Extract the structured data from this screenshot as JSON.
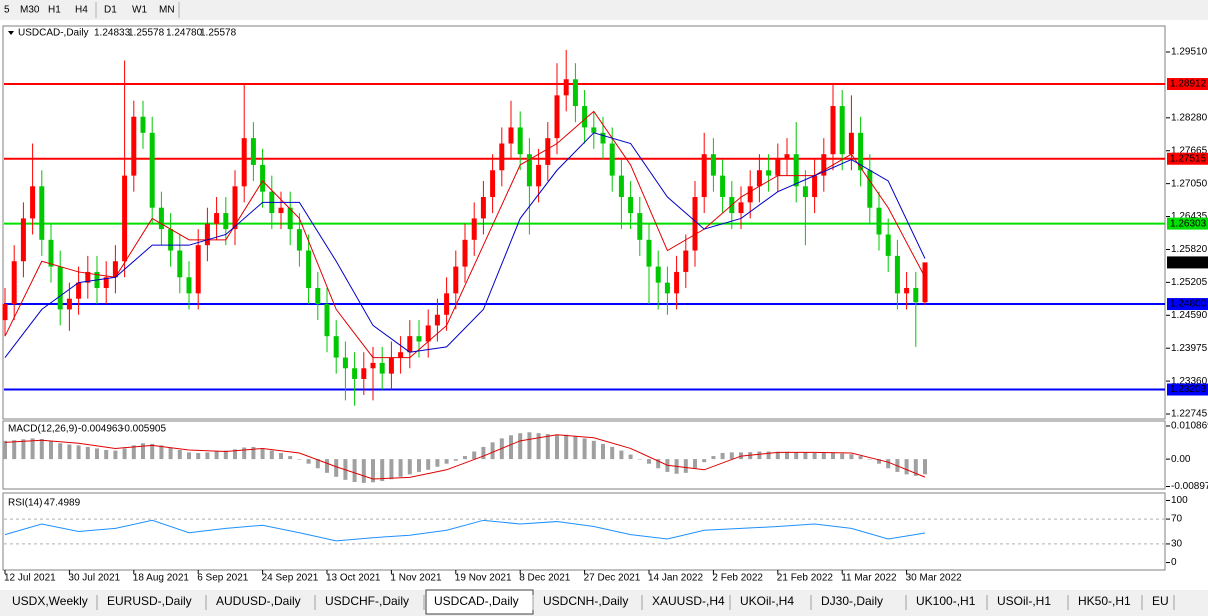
{
  "toolbar": {
    "timeframes": [
      "5",
      "M30",
      "H1",
      "H4",
      "D1",
      "W1",
      "MN"
    ]
  },
  "chart_data": [
    {
      "type": "candlestick",
      "symbol": "USDCAD-,Daily",
      "quote_labels": [
        "1.24833",
        "1.25578",
        "1.24780",
        "1.25578"
      ],
      "up_color": "#ff0000",
      "down_color": "#00c800",
      "categories": [
        "12 Jul 2021",
        null,
        null,
        null,
        null,
        null,
        null,
        "30 Jul 2021",
        null,
        null,
        null,
        null,
        null,
        null,
        "18 Aug 2021",
        null,
        null,
        null,
        null,
        null,
        null,
        "6 Sep 2021",
        null,
        null,
        null,
        null,
        null,
        null,
        "24 Sep 2021",
        null,
        null,
        null,
        null,
        null,
        null,
        "13 Oct 2021",
        null,
        null,
        null,
        null,
        null,
        null,
        "1 Nov 2021",
        null,
        null,
        null,
        null,
        null,
        null,
        "19 Nov 2021",
        null,
        null,
        null,
        null,
        null,
        null,
        "8 Dec 2021",
        null,
        null,
        null,
        null,
        null,
        null,
        "27 Dec 2021",
        null,
        null,
        null,
        null,
        null,
        null,
        "14 Jan 2022",
        null,
        null,
        null,
        null,
        null,
        null,
        "2 Feb 2022",
        null,
        null,
        null,
        null,
        null,
        null,
        "21 Feb 2022",
        null,
        null,
        null,
        null,
        null,
        null,
        "11 Mar 2022",
        null,
        null,
        null,
        null,
        null,
        null,
        "30 Mar 2022",
        null,
        null
      ],
      "open": [
        1.245,
        1.248,
        1.256,
        1.264,
        1.27,
        1.26,
        1.255,
        1.247,
        1.249,
        1.252,
        1.254,
        1.251,
        1.253,
        1.256,
        1.272,
        1.283,
        1.28,
        1.266,
        1.262,
        1.258,
        1.253,
        1.25,
        1.259,
        1.263,
        1.265,
        1.262,
        1.27,
        1.279,
        1.274,
        1.269,
        1.265,
        1.266,
        1.262,
        1.258,
        1.251,
        1.248,
        1.242,
        1.238,
        1.236,
        1.234,
        1.236,
        1.237,
        1.235,
        1.238,
        1.239,
        1.242,
        1.241,
        1.244,
        1.246,
        1.25,
        1.255,
        1.26,
        1.264,
        1.268,
        1.273,
        1.278,
        1.281,
        1.276,
        1.27,
        1.274,
        1.279,
        1.287,
        1.29,
        1.285,
        1.281,
        1.28,
        1.278,
        1.272,
        1.268,
        1.265,
        1.26,
        1.255,
        1.252,
        1.25,
        1.254,
        1.258,
        1.268,
        1.276,
        1.272,
        1.268,
        1.265,
        1.267,
        1.27,
        1.273,
        1.272,
        1.275,
        1.276,
        1.27,
        1.268,
        1.272,
        1.276,
        1.285,
        1.276,
        1.28,
        1.273,
        1.266,
        1.261,
        1.257,
        1.25,
        1.251,
        1.24833
      ],
      "high": [
        1.251,
        1.259,
        1.267,
        1.278,
        1.273,
        1.263,
        1.258,
        1.252,
        1.255,
        1.257,
        1.257,
        1.256,
        1.259,
        1.2935,
        1.286,
        1.286,
        1.283,
        1.269,
        1.265,
        1.261,
        1.256,
        1.262,
        1.266,
        1.268,
        1.268,
        1.273,
        1.289,
        1.282,
        1.277,
        1.272,
        1.269,
        1.269,
        1.265,
        1.261,
        1.254,
        1.251,
        1.245,
        1.241,
        1.239,
        1.239,
        1.24,
        1.24,
        1.241,
        1.242,
        1.245,
        1.245,
        1.247,
        1.249,
        1.253,
        1.258,
        1.263,
        1.267,
        1.271,
        1.276,
        1.281,
        1.286,
        1.284,
        1.279,
        1.277,
        1.282,
        1.293,
        1.2955,
        1.293,
        1.288,
        1.284,
        1.283,
        1.281,
        1.275,
        1.271,
        1.268,
        1.263,
        1.258,
        1.255,
        1.257,
        1.261,
        1.271,
        1.28,
        1.279,
        1.275,
        1.271,
        1.27,
        1.273,
        1.276,
        1.276,
        1.278,
        1.279,
        1.282,
        1.273,
        1.275,
        1.279,
        1.289,
        1.288,
        1.287,
        1.283,
        1.276,
        1.269,
        1.264,
        1.26,
        1.254,
        1.254,
        1.25578
      ],
      "low": [
        1.242,
        1.245,
        1.253,
        1.261,
        1.257,
        1.252,
        1.244,
        1.243,
        1.246,
        1.249,
        1.248,
        1.248,
        1.25,
        1.253,
        1.269,
        1.277,
        1.263,
        1.259,
        1.255,
        1.25,
        1.247,
        1.247,
        1.256,
        1.26,
        1.259,
        1.259,
        1.267,
        1.271,
        1.266,
        1.262,
        1.262,
        1.259,
        1.255,
        1.248,
        1.245,
        1.239,
        1.235,
        1.23,
        1.229,
        1.231,
        1.23,
        1.232,
        1.232,
        1.235,
        1.236,
        1.238,
        1.238,
        1.241,
        1.243,
        1.247,
        1.252,
        1.257,
        1.261,
        1.265,
        1.27,
        1.275,
        1.273,
        1.261,
        1.267,
        1.271,
        1.276,
        1.284,
        1.282,
        1.278,
        1.277,
        1.275,
        1.269,
        1.262,
        1.262,
        1.257,
        1.248,
        1.247,
        1.246,
        1.247,
        1.251,
        1.255,
        1.265,
        1.269,
        1.265,
        1.262,
        1.262,
        1.264,
        1.267,
        1.269,
        1.269,
        1.272,
        1.267,
        1.259,
        1.265,
        1.269,
        1.273,
        1.273,
        1.273,
        1.27,
        1.263,
        1.258,
        1.254,
        1.247,
        1.247,
        1.24,
        1.2478
      ],
      "close": [
        1.248,
        1.256,
        1.264,
        1.27,
        1.26,
        1.255,
        1.247,
        1.249,
        1.252,
        1.254,
        1.251,
        1.253,
        1.256,
        1.272,
        1.283,
        1.28,
        1.266,
        1.262,
        1.258,
        1.253,
        1.25,
        1.259,
        1.263,
        1.265,
        1.262,
        1.27,
        1.279,
        1.274,
        1.269,
        1.265,
        1.266,
        1.262,
        1.258,
        1.251,
        1.248,
        1.242,
        1.238,
        1.236,
        1.234,
        1.236,
        1.237,
        1.235,
        1.238,
        1.239,
        1.242,
        1.241,
        1.244,
        1.246,
        1.25,
        1.255,
        1.26,
        1.264,
        1.268,
        1.273,
        1.278,
        1.281,
        1.276,
        1.27,
        1.274,
        1.279,
        1.287,
        1.29,
        1.285,
        1.281,
        1.28,
        1.278,
        1.272,
        1.268,
        1.265,
        1.26,
        1.255,
        1.252,
        1.25,
        1.254,
        1.258,
        1.268,
        1.276,
        1.272,
        1.268,
        1.265,
        1.267,
        1.27,
        1.273,
        1.272,
        1.275,
        1.276,
        1.27,
        1.268,
        1.272,
        1.276,
        1.285,
        1.276,
        1.28,
        1.273,
        1.266,
        1.261,
        1.257,
        1.25,
        1.251,
        1.24833,
        1.25578
      ],
      "series": [
        {
          "color": "#e00000",
          "x": [
            0,
            4,
            8,
            12,
            16,
            20,
            24,
            28,
            32,
            36,
            40,
            44,
            48,
            52,
            56,
            60,
            64,
            68,
            72,
            76,
            80,
            84,
            88,
            92,
            96,
            100
          ],
          "values": [
            1.242,
            1.256,
            1.254,
            1.253,
            1.264,
            1.26,
            1.26,
            1.271,
            1.264,
            1.247,
            1.238,
            1.238,
            1.244,
            1.259,
            1.274,
            1.278,
            1.284,
            1.274,
            1.258,
            1.262,
            1.268,
            1.272,
            1.272,
            1.276,
            1.266,
            1.253
          ]
        },
        {
          "color": "#0000c8",
          "x": [
            0,
            4,
            8,
            12,
            16,
            20,
            24,
            28,
            32,
            36,
            40,
            44,
            48,
            52,
            56,
            60,
            64,
            68,
            72,
            76,
            80,
            84,
            88,
            92,
            96,
            100
          ],
          "values": [
            1.238,
            1.247,
            1.252,
            1.253,
            1.259,
            1.259,
            1.261,
            1.267,
            1.267,
            1.256,
            1.244,
            1.239,
            1.24,
            1.247,
            1.264,
            1.273,
            1.28,
            1.278,
            1.268,
            1.262,
            1.264,
            1.269,
            1.272,
            1.275,
            1.271,
            1.2565
          ]
        }
      ],
      "hlines": [
        {
          "value": 1.28912,
          "color": "#ff0000"
        },
        {
          "value": 1.27515,
          "color": "#ff0000"
        },
        {
          "value": 1.26303,
          "color": "#00e000"
        },
        {
          "value": {
            "value": 1.248,
            "label": "1.24800"
          },
          "color": "#0000ff"
        },
        {
          "value": 1.23203,
          "color": "#0000ff"
        }
      ],
      "ylim": [
        1.22652,
        1.29977
      ],
      "yticks": [
        {
          "value": 1.2951,
          "label": "1.29510"
        },
        {
          "value": 1.2828,
          "label": "1.28280"
        },
        1.27665,
        {
          "value": 1.2705,
          "label": "1.27050"
        },
        1.26435,
        {
          "value": 1.2582,
          "label": "1.25820"
        },
        1.25205,
        {
          "value": 1.2459,
          "label": "1.24590"
        },
        1.23975,
        {
          "value": 1.2336,
          "label": "1.23360"
        },
        1.22745
      ]
    },
    {
      "type": "macd",
      "title": "MACD(12,26,9)",
      "color": "#a0a0a0",
      "values": [
        0.006,
        0.0062,
        0.0065,
        0.0068,
        0.0066,
        0.006,
        0.0052,
        0.0048,
        0.0045,
        0.004,
        0.0035,
        0.003,
        0.0028,
        0.0035,
        0.0045,
        0.0052,
        0.005,
        0.0045,
        0.0038,
        0.003,
        0.0022,
        0.002,
        0.0022,
        0.0025,
        0.0028,
        0.0032,
        0.0038,
        0.004,
        0.0035,
        0.0028,
        0.002,
        0.001,
        0.0,
        -0.0015,
        -0.003,
        -0.0045,
        -0.0058,
        -0.0068,
        -0.0075,
        -0.0078,
        -0.0076,
        -0.0072,
        -0.0066,
        -0.0058,
        -0.005,
        -0.0042,
        -0.0035,
        -0.0025,
        -0.0015,
        -0.0005,
        0.001,
        0.0025,
        0.004,
        0.0055,
        0.0068,
        0.0078,
        0.0085,
        0.0088,
        0.0085,
        0.0082,
        0.0078,
        0.008,
        0.0075,
        0.0068,
        0.006,
        0.005,
        0.004,
        0.0028,
        0.0015,
        0.0,
        -0.0015,
        -0.003,
        -0.0042,
        -0.0048,
        -0.0045,
        -0.003,
        -0.001,
        0.001,
        0.002,
        0.0022,
        0.0022,
        0.0023,
        0.0025,
        0.0025,
        0.0024,
        0.0024,
        0.0023,
        0.0022,
        0.002,
        0.002,
        0.0022,
        0.0018,
        0.0016,
        0.001,
        0.0,
        -0.0015,
        -0.003,
        -0.0042,
        -0.005,
        -0.0055,
        -0.004963
      ],
      "signal": {
        "color": "#e00000",
        "x": [
          0,
          4,
          8,
          12,
          16,
          20,
          24,
          28,
          32,
          36,
          40,
          44,
          48,
          52,
          56,
          60,
          64,
          68,
          72,
          76,
          80,
          84,
          88,
          92,
          96,
          100
        ],
        "values": [
          0.0055,
          0.0062,
          0.0052,
          0.0035,
          0.0045,
          0.003,
          0.0025,
          0.0035,
          0.002,
          -0.0025,
          -0.0065,
          -0.006,
          -0.0035,
          0.001,
          0.006,
          0.008,
          0.007,
          0.0035,
          -0.002,
          -0.0035,
          0.001,
          0.0022,
          0.0022,
          0.002,
          -0.001,
          -0.005905
        ]
      },
      "ylim": [
        -0.0098,
        0.0125
      ],
      "yticks": [
        0.010869,
        {
          "value": 0,
          "label": "0.00"
        },
        -0.008974
      ]
    },
    {
      "type": "rsi",
      "title": "RSI(14)",
      "color": "#1e90ff",
      "x": [
        0,
        4,
        8,
        12,
        16,
        20,
        24,
        28,
        32,
        36,
        40,
        44,
        48,
        52,
        56,
        60,
        64,
        68,
        72,
        76,
        80,
        84,
        88,
        92,
        96,
        100
      ],
      "values": [
        45,
        62,
        50,
        55,
        68,
        48,
        55,
        60,
        48,
        35,
        40,
        44,
        52,
        68,
        62,
        66,
        58,
        45,
        38,
        52,
        55,
        58,
        62,
        55,
        38,
        47.4989
      ],
      "ylim": [
        -12,
        112
      ],
      "yticks": [
        100,
        70,
        30,
        0
      ]
    }
  ],
  "tabs": [
    "USDX,Weekly",
    "EURUSD-,Daily",
    "AUDUSD-,Daily",
    "USDCHF-,Daily",
    "USDCAD-,Daily",
    "USDCNH-,Daily",
    "XAUUSD-,H4",
    "UKOil-,H4",
    "DJ30-,Daily",
    "UK100-,H1",
    "USOil-,H1",
    "HK50-,H1",
    "EU"
  ],
  "active_tab": 4
}
